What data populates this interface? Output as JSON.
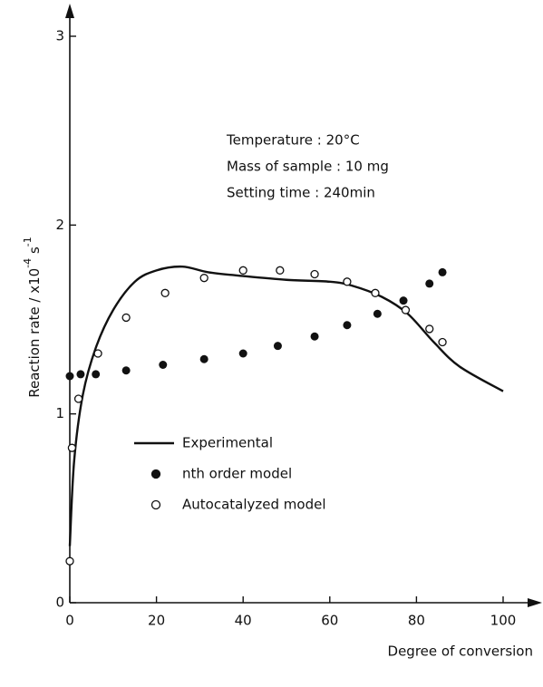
{
  "chart_data": {
    "type": "line",
    "annotations": [
      "Temperature : 20°C",
      "Mass of sample : 10 mg",
      "Setting time : 240min"
    ],
    "x_label": "Degree of conversion",
    "y_label": [
      "Reaction rate / x10",
      "-4",
      " s",
      "-1"
    ],
    "xlim": [
      0,
      100
    ],
    "xticks": [
      0,
      20,
      40,
      60,
      80,
      100
    ],
    "ylim": [
      0,
      3
    ],
    "yticks": [
      0,
      1,
      2,
      3
    ],
    "series": [
      {
        "name": "Experimental",
        "style": "line",
        "color": "#111111",
        "x": [
          0,
          1,
          3,
          6,
          10,
          15,
          20,
          26,
          32,
          40,
          50,
          60,
          65,
          72,
          78,
          84,
          90,
          100
        ],
        "values": [
          0.3,
          0.75,
          1.1,
          1.35,
          1.55,
          1.7,
          1.76,
          1.78,
          1.75,
          1.73,
          1.71,
          1.7,
          1.68,
          1.62,
          1.53,
          1.38,
          1.25,
          1.12
        ]
      },
      {
        "name": "nth order model",
        "style": "filled",
        "color": "#111111",
        "x": [
          0,
          2.5,
          6,
          13,
          21.5,
          31,
          40,
          48,
          56.5,
          64,
          71,
          77,
          83,
          86
        ],
        "values": [
          1.2,
          1.21,
          1.21,
          1.23,
          1.26,
          1.29,
          1.32,
          1.36,
          1.41,
          1.47,
          1.53,
          1.6,
          1.69,
          1.75
        ]
      },
      {
        "name": "Autocatalyzed model",
        "style": "open",
        "color": "#111111",
        "x": [
          0,
          0.5,
          2,
          6.5,
          13,
          22,
          31,
          40,
          48.5,
          56.5,
          64,
          70.5,
          77.5,
          83,
          86
        ],
        "values": [
          0.22,
          0.82,
          1.08,
          1.32,
          1.51,
          1.64,
          1.72,
          1.76,
          1.76,
          1.74,
          1.7,
          1.64,
          1.55,
          1.45,
          1.38
        ]
      }
    ]
  }
}
